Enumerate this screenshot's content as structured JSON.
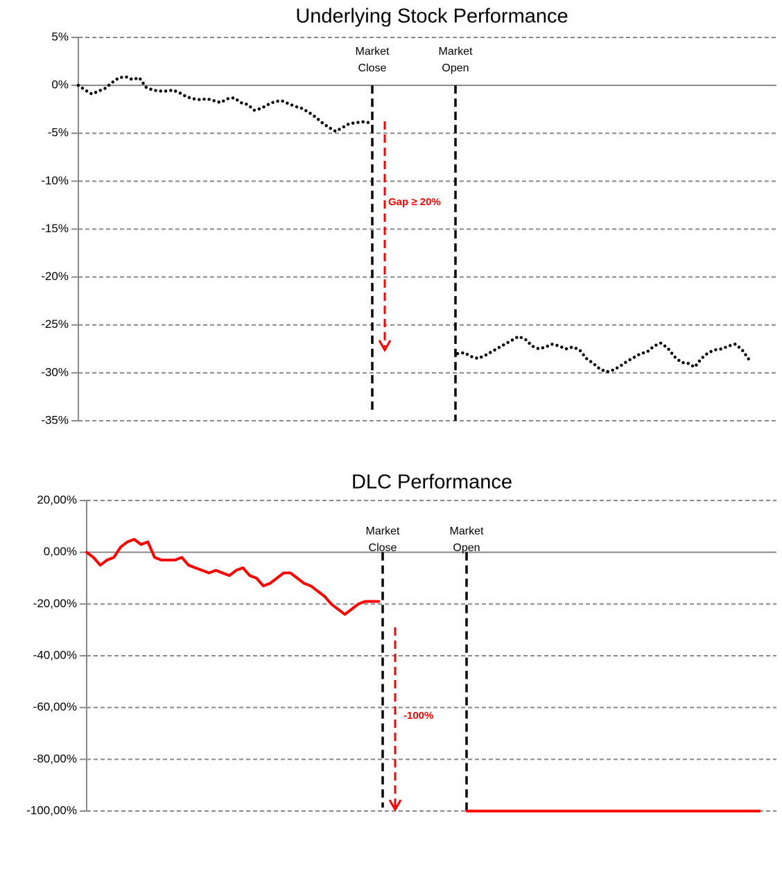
{
  "chart_data": [
    {
      "type": "line",
      "title": "Underlying Stock Performance",
      "ylim": [
        -35,
        5
      ],
      "yticks": [
        {
          "value": -35,
          "label": "-35%"
        },
        {
          "value": -30,
          "label": "-30%"
        },
        {
          "value": -25,
          "label": "-25%"
        },
        {
          "value": -20,
          "label": "-20%"
        },
        {
          "value": -15,
          "label": "-15%"
        },
        {
          "value": -10,
          "label": "-10%"
        },
        {
          "value": -5,
          "label": "-5%"
        },
        {
          "value": 0,
          "label": "0%"
        },
        {
          "value": 5,
          "label": "5%"
        }
      ],
      "grid": true,
      "series": [
        {
          "color": "#000000",
          "style": "dotted",
          "values": [
            0,
            -0.5,
            -0.9,
            -0.6,
            -0.3,
            0.3,
            0.8,
            0.9,
            0.6,
            0.8,
            -0.2,
            -0.5,
            -0.6,
            -0.6,
            -0.5,
            -0.8,
            -1.2,
            -1.4,
            -1.5,
            -1.4,
            -1.6,
            -1.8,
            -1.4,
            -1.3,
            -1.8,
            -2.0,
            -2.6,
            -2.4,
            -2.0,
            -1.7,
            -1.6,
            -1.9,
            -2.2,
            -2.4,
            -2.8,
            -3.3,
            -3.9,
            -4.4,
            -4.8,
            -4.4,
            -4.0,
            -3.9,
            -3.8,
            -3.9,
            null,
            null,
            null,
            null,
            null,
            null,
            null,
            null,
            null,
            null,
            null,
            null,
            -28.0,
            -27.9,
            -28.3,
            -28.5,
            -28.2,
            -27.8,
            -27.4,
            -27.0,
            -26.6,
            -26.2,
            -26.5,
            -27.2,
            -27.5,
            -27.3,
            -27.0,
            -27.2,
            -27.5,
            -27.3,
            -27.6,
            -28.5,
            -29.0,
            -29.6,
            -29.9,
            -29.7,
            -29.3,
            -28.8,
            -28.4,
            -28.0,
            -27.8,
            -27.2,
            -26.9,
            -27.4,
            -28.3,
            -28.9,
            -29.0,
            -29.4,
            -28.5,
            -27.9,
            -27.6,
            -27.5,
            -27.2,
            -27.0,
            -27.6,
            -28.6
          ]
        }
      ],
      "annotations": [
        "Market Close",
        "Market Open",
        "Gap ≥ 20%"
      ]
    },
    {
      "type": "line",
      "title": "DLC Performance",
      "ylim": [
        -100,
        20
      ],
      "yticks": [
        {
          "value": -100,
          "label": "-100,00%"
        },
        {
          "value": -80,
          "label": "-80,00%"
        },
        {
          "value": -60,
          "label": "-60,00%"
        },
        {
          "value": -40,
          "label": "-40,00%"
        },
        {
          "value": -20,
          "label": "-20,00%"
        },
        {
          "value": 0,
          "label": "0,00%"
        },
        {
          "value": 20,
          "label": "20,00%"
        }
      ],
      "grid": true,
      "series": [
        {
          "color": "#ff0000",
          "style": "solid",
          "values": [
            0,
            -2,
            -5,
            -3,
            -2,
            2,
            4,
            5,
            3,
            4,
            -2,
            -3,
            -3,
            -3,
            -2,
            -5,
            -6,
            -7,
            -8,
            -7,
            -8,
            -9,
            -7,
            -6,
            -9,
            -10,
            -13,
            -12,
            -10,
            -8,
            -8,
            -10,
            -12,
            -13,
            -15,
            -17,
            -20,
            -22,
            -24,
            -22,
            -20,
            -19,
            -19,
            -19,
            null,
            null,
            null,
            null,
            null,
            null,
            null,
            null,
            null,
            null,
            null,
            null,
            -100,
            -100,
            -100,
            -100,
            -100,
            -100,
            -100,
            -100,
            -100,
            -100,
            -100,
            -100,
            -100,
            -100,
            -100,
            -100,
            -100,
            -100,
            -100,
            -100,
            -100,
            -100,
            -100,
            -100,
            -100,
            -100,
            -100,
            -100,
            -100,
            -100,
            -100,
            -100,
            -100,
            -100,
            -100,
            -100,
            -100,
            -100,
            -100,
            -100,
            -100,
            -100,
            -100,
            -100
          ]
        }
      ],
      "annotations": [
        "Market Close",
        "Market Open",
        "-100%"
      ]
    }
  ]
}
